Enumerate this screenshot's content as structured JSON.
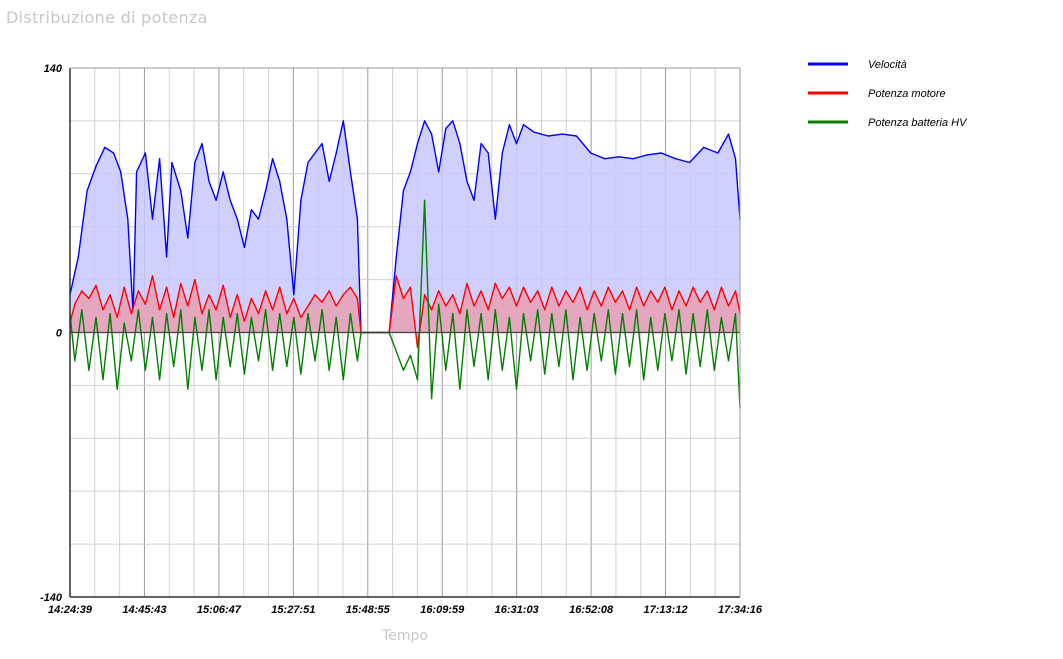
{
  "title": "Distribuzione di potenza",
  "chart_data": {
    "type": "line",
    "title": "Distribuzione di potenza",
    "xlabel": "Tempo",
    "ylabel": "",
    "ylim": [
      -140,
      140
    ],
    "y_ticks": [
      "140",
      "0",
      "-140"
    ],
    "x_ticks": [
      "14:24:39",
      "14:45:43",
      "15:06:47",
      "15:27:51",
      "15:48:55",
      "16:09:59",
      "16:31:03",
      "16:52:08",
      "17:13:12",
      "17:34:16"
    ],
    "grid": true,
    "legend_position": "right",
    "series": [
      {
        "name": "Velocità",
        "color": "#0000ff",
        "fill": "#c8c8ff",
        "points": [
          [
            "14:24:39",
            20
          ],
          [
            "14:27:00",
            40
          ],
          [
            "14:29:30",
            75
          ],
          [
            "14:32:00",
            88
          ],
          [
            "14:34:30",
            98
          ],
          [
            "14:37:00",
            95
          ],
          [
            "14:39:00",
            85
          ],
          [
            "14:41:00",
            60
          ],
          [
            "14:42:30",
            10
          ],
          [
            "14:43:30",
            85
          ],
          [
            "14:46:00",
            95
          ],
          [
            "14:48:00",
            60
          ],
          [
            "14:50:00",
            92
          ],
          [
            "14:52:00",
            40
          ],
          [
            "14:53:30",
            90
          ],
          [
            "14:56:00",
            75
          ],
          [
            "14:58:00",
            50
          ],
          [
            "15:00:00",
            90
          ],
          [
            "15:02:00",
            100
          ],
          [
            "15:04:00",
            80
          ],
          [
            "15:06:00",
            70
          ],
          [
            "15:08:00",
            85
          ],
          [
            "15:10:00",
            70
          ],
          [
            "15:12:00",
            60
          ],
          [
            "15:14:00",
            45
          ],
          [
            "15:16:00",
            65
          ],
          [
            "15:18:00",
            60
          ],
          [
            "15:20:00",
            75
          ],
          [
            "15:22:00",
            92
          ],
          [
            "15:24:00",
            80
          ],
          [
            "15:26:00",
            60
          ],
          [
            "15:28:00",
            20
          ],
          [
            "15:30:00",
            70
          ],
          [
            "15:32:00",
            90
          ],
          [
            "15:34:00",
            95
          ],
          [
            "15:36:00",
            100
          ],
          [
            "15:38:00",
            80
          ],
          [
            "15:40:00",
            95
          ],
          [
            "15:42:00",
            112
          ],
          [
            "15:44:00",
            85
          ],
          [
            "15:46:00",
            60
          ],
          [
            "15:47:00",
            0
          ],
          [
            "15:50:00",
            0
          ],
          [
            "15:55:00",
            0
          ],
          [
            "15:57:00",
            40
          ],
          [
            "15:59:00",
            75
          ],
          [
            "16:01:00",
            85
          ],
          [
            "16:03:00",
            100
          ],
          [
            "16:05:00",
            112
          ],
          [
            "16:07:00",
            105
          ],
          [
            "16:09:00",
            85
          ],
          [
            "16:11:00",
            108
          ],
          [
            "16:13:00",
            112
          ],
          [
            "16:15:00",
            100
          ],
          [
            "16:17:00",
            80
          ],
          [
            "16:19:00",
            70
          ],
          [
            "16:21:00",
            100
          ],
          [
            "16:23:00",
            95
          ],
          [
            "16:25:00",
            60
          ],
          [
            "16:27:00",
            95
          ],
          [
            "16:29:00",
            110
          ],
          [
            "16:31:00",
            100
          ],
          [
            "16:33:00",
            110
          ],
          [
            "16:36:00",
            106
          ],
          [
            "16:40:00",
            104
          ],
          [
            "16:44:00",
            105
          ],
          [
            "16:48:00",
            104
          ],
          [
            "16:52:00",
            95
          ],
          [
            "16:56:00",
            92
          ],
          [
            "17:00:00",
            93
          ],
          [
            "17:04:00",
            92
          ],
          [
            "17:08:00",
            94
          ],
          [
            "17:12:00",
            95
          ],
          [
            "17:16:00",
            92
          ],
          [
            "17:20:00",
            90
          ],
          [
            "17:24:00",
            98
          ],
          [
            "17:28:00",
            95
          ],
          [
            "17:31:00",
            105
          ],
          [
            "17:33:00",
            92
          ],
          [
            "17:34:16",
            60
          ]
        ]
      },
      {
        "name": "Potenza motore",
        "color": "#ff0000",
        "fill": "#e8a0b4",
        "points": [
          [
            "14:24:39",
            5
          ],
          [
            "14:26:00",
            15
          ],
          [
            "14:28:00",
            22
          ],
          [
            "14:30:00",
            18
          ],
          [
            "14:32:00",
            25
          ],
          [
            "14:34:00",
            12
          ],
          [
            "14:36:00",
            20
          ],
          [
            "14:38:00",
            8
          ],
          [
            "14:40:00",
            24
          ],
          [
            "14:42:00",
            10
          ],
          [
            "14:44:00",
            22
          ],
          [
            "14:46:00",
            15
          ],
          [
            "14:48:00",
            30
          ],
          [
            "14:50:00",
            12
          ],
          [
            "14:52:00",
            24
          ],
          [
            "14:54:00",
            8
          ],
          [
            "14:56:00",
            26
          ],
          [
            "14:58:00",
            14
          ],
          [
            "15:00:00",
            28
          ],
          [
            "15:02:00",
            10
          ],
          [
            "15:04:00",
            20
          ],
          [
            "15:06:00",
            12
          ],
          [
            "15:08:00",
            25
          ],
          [
            "15:10:00",
            8
          ],
          [
            "15:12:00",
            20
          ],
          [
            "15:14:00",
            6
          ],
          [
            "15:16:00",
            18
          ],
          [
            "15:18:00",
            10
          ],
          [
            "15:20:00",
            22
          ],
          [
            "15:22:00",
            12
          ],
          [
            "15:24:00",
            24
          ],
          [
            "15:26:00",
            10
          ],
          [
            "15:28:00",
            18
          ],
          [
            "15:30:00",
            8
          ],
          [
            "15:32:00",
            14
          ],
          [
            "15:34:00",
            20
          ],
          [
            "15:36:00",
            16
          ],
          [
            "15:38:00",
            22
          ],
          [
            "15:40:00",
            14
          ],
          [
            "15:42:00",
            20
          ],
          [
            "15:44:00",
            24
          ],
          [
            "15:46:00",
            18
          ],
          [
            "15:47:00",
            0
          ],
          [
            "15:55:00",
            0
          ],
          [
            "15:57:00",
            30
          ],
          [
            "15:59:00",
            18
          ],
          [
            "16:01:00",
            24
          ],
          [
            "16:03:00",
            -8
          ],
          [
            "16:05:00",
            20
          ],
          [
            "16:07:00",
            12
          ],
          [
            "16:09:00",
            22
          ],
          [
            "16:11:00",
            14
          ],
          [
            "16:13:00",
            20
          ],
          [
            "16:15:00",
            10
          ],
          [
            "16:17:00",
            26
          ],
          [
            "16:19:00",
            14
          ],
          [
            "16:21:00",
            22
          ],
          [
            "16:23:00",
            12
          ],
          [
            "16:25:00",
            26
          ],
          [
            "16:27:00",
            18
          ],
          [
            "16:29:00",
            24
          ],
          [
            "16:31:00",
            14
          ],
          [
            "16:33:00",
            24
          ],
          [
            "16:35:00",
            16
          ],
          [
            "16:37:00",
            22
          ],
          [
            "16:39:00",
            12
          ],
          [
            "16:41:00",
            24
          ],
          [
            "16:43:00",
            14
          ],
          [
            "16:45:00",
            22
          ],
          [
            "16:47:00",
            16
          ],
          [
            "16:49:00",
            24
          ],
          [
            "16:51:00",
            12
          ],
          [
            "16:53:00",
            22
          ],
          [
            "16:55:00",
            14
          ],
          [
            "16:57:00",
            24
          ],
          [
            "16:59:00",
            16
          ],
          [
            "17:01:00",
            22
          ],
          [
            "17:03:00",
            12
          ],
          [
            "17:05:00",
            24
          ],
          [
            "17:07:00",
            14
          ],
          [
            "17:09:00",
            22
          ],
          [
            "17:11:00",
            16
          ],
          [
            "17:13:00",
            24
          ],
          [
            "17:15:00",
            12
          ],
          [
            "17:17:00",
            22
          ],
          [
            "17:19:00",
            14
          ],
          [
            "17:21:00",
            24
          ],
          [
            "17:23:00",
            16
          ],
          [
            "17:25:00",
            22
          ],
          [
            "17:27:00",
            12
          ],
          [
            "17:29:00",
            24
          ],
          [
            "17:31:00",
            14
          ],
          [
            "17:33:00",
            22
          ],
          [
            "17:34:16",
            10
          ]
        ]
      },
      {
        "name": "Potenza batteria HV",
        "color": "#008000",
        "fill": "",
        "points": [
          [
            "14:24:39",
            10
          ],
          [
            "14:26:00",
            -15
          ],
          [
            "14:28:00",
            12
          ],
          [
            "14:30:00",
            -20
          ],
          [
            "14:32:00",
            8
          ],
          [
            "14:34:00",
            -25
          ],
          [
            "14:36:00",
            10
          ],
          [
            "14:38:00",
            -30
          ],
          [
            "14:40:00",
            5
          ],
          [
            "14:42:00",
            -15
          ],
          [
            "14:44:00",
            12
          ],
          [
            "14:46:00",
            -20
          ],
          [
            "14:48:00",
            8
          ],
          [
            "14:50:00",
            -25
          ],
          [
            "14:52:00",
            10
          ],
          [
            "14:54:00",
            -18
          ],
          [
            "14:56:00",
            12
          ],
          [
            "14:58:00",
            -30
          ],
          [
            "15:00:00",
            8
          ],
          [
            "15:02:00",
            -20
          ],
          [
            "15:04:00",
            12
          ],
          [
            "15:06:00",
            -25
          ],
          [
            "15:08:00",
            8
          ],
          [
            "15:10:00",
            -18
          ],
          [
            "15:12:00",
            10
          ],
          [
            "15:14:00",
            -22
          ],
          [
            "15:16:00",
            8
          ],
          [
            "15:18:00",
            -15
          ],
          [
            "15:20:00",
            12
          ],
          [
            "15:22:00",
            -20
          ],
          [
            "15:24:00",
            10
          ],
          [
            "15:26:00",
            -18
          ],
          [
            "15:28:00",
            8
          ],
          [
            "15:30:00",
            -22
          ],
          [
            "15:32:00",
            10
          ],
          [
            "15:34:00",
            -15
          ],
          [
            "15:36:00",
            12
          ],
          [
            "15:38:00",
            -20
          ],
          [
            "15:40:00",
            8
          ],
          [
            "15:42:00",
            -25
          ],
          [
            "15:44:00",
            10
          ],
          [
            "15:46:00",
            -15
          ],
          [
            "15:47:00",
            0
          ],
          [
            "15:55:00",
            0
          ],
          [
            "15:57:00",
            -10
          ],
          [
            "15:59:00",
            -20
          ],
          [
            "16:01:00",
            -12
          ],
          [
            "16:03:00",
            -25
          ],
          [
            "16:05:00",
            70
          ],
          [
            "16:07:00",
            -35
          ],
          [
            "16:09:00",
            15
          ],
          [
            "16:11:00",
            -20
          ],
          [
            "16:13:00",
            10
          ],
          [
            "16:15:00",
            -30
          ],
          [
            "16:17:00",
            12
          ],
          [
            "16:19:00",
            -18
          ],
          [
            "16:21:00",
            10
          ],
          [
            "16:23:00",
            -25
          ],
          [
            "16:25:00",
            12
          ],
          [
            "16:27:00",
            -20
          ],
          [
            "16:29:00",
            8
          ],
          [
            "16:31:00",
            -30
          ],
          [
            "16:33:00",
            10
          ],
          [
            "16:35:00",
            -15
          ],
          [
            "16:37:00",
            12
          ],
          [
            "16:39:00",
            -22
          ],
          [
            "16:41:00",
            10
          ],
          [
            "16:43:00",
            -18
          ],
          [
            "16:45:00",
            12
          ],
          [
            "16:47:00",
            -25
          ],
          [
            "16:49:00",
            8
          ],
          [
            "16:51:00",
            -20
          ],
          [
            "16:53:00",
            10
          ],
          [
            "16:55:00",
            -15
          ],
          [
            "16:57:00",
            12
          ],
          [
            "16:59:00",
            -22
          ],
          [
            "17:01:00",
            10
          ],
          [
            "17:03:00",
            -18
          ],
          [
            "17:05:00",
            12
          ],
          [
            "17:07:00",
            -25
          ],
          [
            "17:09:00",
            8
          ],
          [
            "17:11:00",
            -20
          ],
          [
            "17:13:00",
            10
          ],
          [
            "17:15:00",
            -15
          ],
          [
            "17:17:00",
            12
          ],
          [
            "17:19:00",
            -22
          ],
          [
            "17:21:00",
            10
          ],
          [
            "17:23:00",
            -18
          ],
          [
            "17:25:00",
            12
          ],
          [
            "17:27:00",
            -20
          ],
          [
            "17:29:00",
            8
          ],
          [
            "17:31:00",
            -15
          ],
          [
            "17:33:00",
            10
          ],
          [
            "17:34:16",
            -40
          ]
        ]
      }
    ]
  }
}
